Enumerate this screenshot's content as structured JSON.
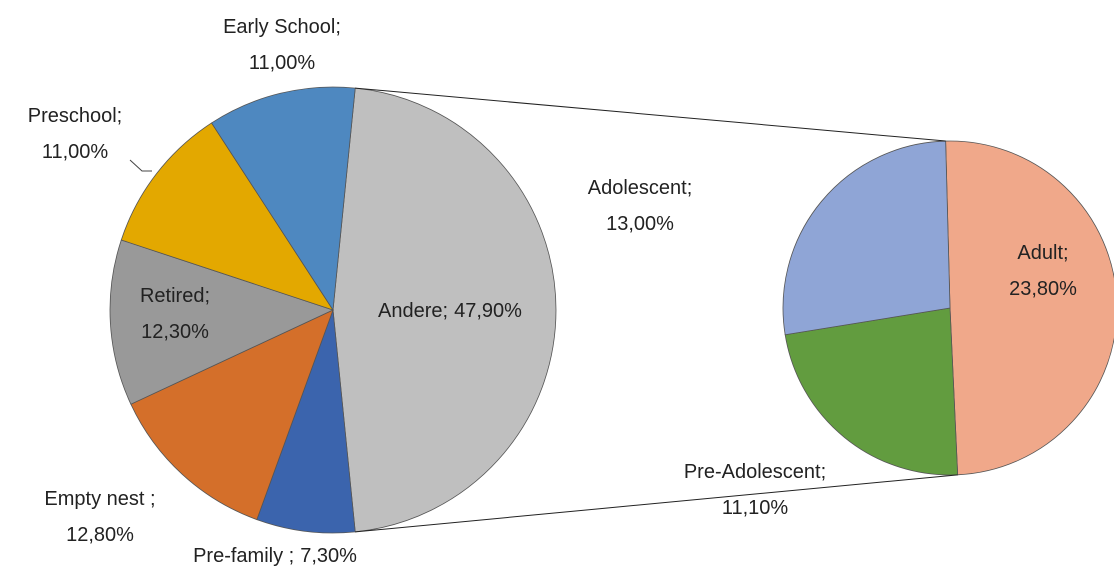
{
  "chart_data": {
    "type": "pie_of_pie",
    "categories": [
      "Andere;",
      "Pre-family ;",
      "Empty nest ;",
      "Retired;",
      "Preschool;",
      "Early School;"
    ],
    "values": [
      47.9,
      7.3,
      12.8,
      12.3,
      11.0,
      11.0
    ],
    "value_labels": [
      "47,90%",
      "7,30%",
      "12,80%",
      "12,30%",
      "11,00%",
      "11,00%"
    ],
    "colors": [
      "#bfbfbf",
      "#3b64ad",
      "#d46f2a",
      "#999999",
      "#e3a800",
      "#4e88c0"
    ],
    "secondary": {
      "categories": [
        "Adult;",
        "Pre-Adolescent;",
        "Adolescent;"
      ],
      "values": [
        23.8,
        11.1,
        13.0
      ],
      "value_labels": [
        "23,80%",
        "11,10%",
        "13,00%"
      ],
      "colors": [
        "#f0a88a",
        "#629c3f",
        "#8fa5d6"
      ]
    }
  }
}
